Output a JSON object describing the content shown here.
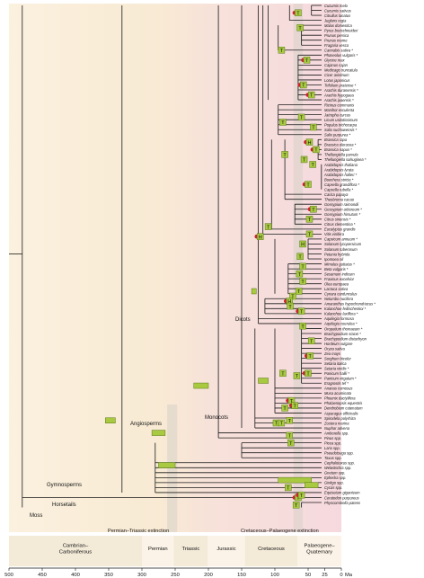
{
  "tree_labels": {
    "dicots": "Dicots",
    "monocots": "Monocots",
    "angiosperms": "Angiosperms",
    "gymnosperms": "Gymnosperms",
    "horsetails": "Horsetails",
    "moss": "Moss"
  },
  "events": {
    "pt": "Permian–Triassic extinction",
    "kpg": "Cretaceous–Palaeogene extinction"
  },
  "periods": [
    {
      "name": "Cambrian–\nCarboniferous",
      "start": 500,
      "end": 300
    },
    {
      "name": "Permian",
      "start": 300,
      "end": 252
    },
    {
      "name": "Triassic",
      "start": 252,
      "end": 201
    },
    {
      "name": "Jurassic",
      "start": 201,
      "end": 145
    },
    {
      "name": "Cretaceous",
      "start": 145,
      "end": 66
    },
    {
      "name": "Palaeogene–\nQuaternary",
      "start": 66,
      "end": 0
    }
  ],
  "axis": {
    "ticks": [
      "500",
      "450",
      "400",
      "350",
      "300",
      "250",
      "200",
      "150",
      "100",
      "50",
      "25",
      "0"
    ],
    "tick_values": [
      500,
      450,
      400,
      350,
      300,
      250,
      200,
      150,
      100,
      50,
      25,
      0
    ],
    "unit": "Ma"
  },
  "marker_letters": {
    "tetraploid": "T",
    "hexaploid": "H"
  },
  "colors": {
    "marker_fill": "#a8c940",
    "marker_stroke": "#5b7a1a",
    "dot": "#d0202e",
    "shade_band": "#d7d2c8",
    "bg_warm": "#f7e6c8",
    "bg_pink": "#f3d3db"
  },
  "species": [
    "Cucumis melo",
    "Cucumis sativus",
    "Citrullus lanatus",
    "Juglans regia",
    "Malus domestica",
    "Pyrus bretschneideri",
    "Prunus persica",
    "Prunus mume",
    "Fragaria vesca",
    "Cannabis sativa *",
    "Phaseolus vulgaris *",
    "Glycine max",
    "Cajanus cajan",
    "Medicago truncatula",
    "Cicer arietinum",
    "Lotus japonicus",
    "Trifolium pratense *",
    "Arachis duranensis *",
    "Arachis hypogaea",
    "Arachis ipaensis *",
    "Ricinus communis",
    "Manihot esculenta",
    "Jatropha curcas",
    "Linum usitatissimum",
    "Populus trichocarpa",
    "Salix suchowensis *",
    "Salix purpurea *",
    "Brassica rapa",
    "Brassica oleracea *",
    "Brassica napus *",
    "Thellungiella parvula",
    "Thellungiella salsuginea *",
    "Arabidopsis thaliana",
    "Arabidopsis lyrata",
    "Arabidopsis halleri *",
    "Boechera stricta *",
    "Capsella grandiflora *",
    "Capsella rubella *",
    "Carica papaya",
    "Theobroma cacao",
    "Gossypium raimondii",
    "Gossypium arboreum *",
    "Gossypium hirsutum *",
    "Citrus sinensis *",
    "Citrus clementina *",
    "Eucalyptus grandis",
    "Vitis vinifera",
    "Capsicum annuum *",
    "Solanum lycopersicum",
    "Solanum tuberosum",
    "Petunia hybrida",
    "Ipomoea nil",
    "Mimulus guttatus *",
    "Beta vulgaris *",
    "Sesamum indicum",
    "Fraxinus excelsior",
    "Olea europaea",
    "Lactuca sativa",
    "Cynara cardunculus",
    "Nelumbo nucifera",
    "Amaranthus hypochondriacus *",
    "Kalanchoe fedtschenkoi *",
    "Kalanchoe laxiflora *",
    "Aquilegia formosa",
    "Aquilegia coerulea *",
    "Oropetium thomaeum *",
    "Brachypodium stacei *",
    "Brachypodium distachyon",
    "Hordeum vulgare",
    "Oryza sativa",
    "Zea mays",
    "Sorghum bicolor",
    "Setaria italica",
    "Setaria viridis *",
    "Panicum hallii *",
    "Panicum virgatum *",
    "Eragrostis tef *",
    "Ananas comosus",
    "Musa acuminata",
    "Phoenix dactylifera",
    "Phalaenopsis equestris",
    "Dendrobium catenatum",
    "Asparagus officinalis",
    "Spirodela polyrhiza",
    "Zostera marina",
    "Nuphar advena",
    "Amborella spp.",
    "Pinus spp.",
    "Picea spp.",
    "Larix spp.",
    "Pseudotsuga spp.",
    "Taxus spp.",
    "Cephalotaxus spp.",
    "Welwitschia spp.",
    "Gnetum spp.",
    "Ephedra spp.",
    "Ginkgo spp.",
    "Cycas spp.",
    "Equisetum giganteum",
    "Ceratodon purpureus",
    "Physcomitrella patens"
  ],
  "markers": [
    {
      "age": 65,
      "row": 1.5,
      "letter": "T",
      "dot": true
    },
    {
      "age": 62,
      "row": 4.5,
      "letter": "T",
      "dot": false
    },
    {
      "age": 90,
      "row": 9.0,
      "letter": "T",
      "dot": false
    },
    {
      "age": 52,
      "row": 11.0,
      "letter": "T",
      "dot": true
    },
    {
      "age": 57,
      "row": 16.0,
      "letter": "T",
      "dot": true
    },
    {
      "age": 45,
      "row": 18.0,
      "letter": "T",
      "dot": true
    },
    {
      "age": 60,
      "row": 22.5,
      "letter": "T",
      "dot": false
    },
    {
      "age": 42,
      "row": 24.5,
      "letter": "T",
      "dot": false
    },
    {
      "age": 88,
      "row": 23.5,
      "letter": "T",
      "dot": false
    },
    {
      "age": 48,
      "row": 27.5,
      "letter": "H",
      "dot": true
    },
    {
      "age": 38,
      "row": 29.0,
      "letter": "T",
      "dot": true
    },
    {
      "age": 43,
      "row": 32.0,
      "letter": "T",
      "dot": false
    },
    {
      "age": 56,
      "row": 31.0,
      "letter": "T",
      "dot": false
    },
    {
      "age": 85,
      "row": 30.0,
      "letter": "T",
      "dot": false
    },
    {
      "age": 50,
      "row": 36.0,
      "letter": "T",
      "dot": true
    },
    {
      "age": 42,
      "row": 41.0,
      "letter": "T",
      "dot": true
    },
    {
      "age": 48,
      "row": 43.0,
      "letter": "T",
      "dot": false
    },
    {
      "age": 110,
      "row": 44.5,
      "letter": "T",
      "dot": false
    },
    {
      "age": 48,
      "row": 46.0,
      "letter": "T",
      "dot": false
    },
    {
      "age": 122,
      "row": 46.5,
      "letter": "H",
      "dot": true
    },
    {
      "age": 58,
      "row": 48.0,
      "letter": "H",
      "dot": false
    },
    {
      "age": 62,
      "row": 50.5,
      "letter": "T",
      "dot": false
    },
    {
      "age": 58,
      "row": 52.5,
      "letter": "T",
      "dot": false
    },
    {
      "age": 63,
      "row": 54.0,
      "letter": "T",
      "dot": false
    },
    {
      "age": 58,
      "row": 55.5,
      "letter": "T",
      "dot": false
    },
    {
      "age": 64,
      "row": 57.5,
      "letter": "T",
      "dot": false
    },
    {
      "age": 73,
      "row": 58.5,
      "letter": "T",
      "dot": false
    },
    {
      "age": 78,
      "row": 59.5,
      "letter": "H",
      "dot": true
    },
    {
      "age": 77,
      "row": 60.5,
      "letter": "T",
      "dot": false
    },
    {
      "age": 60,
      "row": 61.5,
      "letter": "T",
      "dot": true
    },
    {
      "age": 58,
      "row": 64.5,
      "letter": "T",
      "dot": false
    },
    {
      "age": 45,
      "row": 67.5,
      "letter": "T",
      "dot": false
    },
    {
      "age": 47,
      "row": 70.5,
      "letter": "T",
      "dot": true
    },
    {
      "age": 50,
      "row": 74.0,
      "letter": "T",
      "dot": true
    },
    {
      "age": 67,
      "row": 74.5,
      "letter": "T",
      "dot": false
    },
    {
      "age": 88,
      "row": 74.0,
      "letter": "T",
      "dot": false
    },
    {
      "age": 85,
      "row": 81.0,
      "letter": "T",
      "dot": false
    },
    {
      "age": 75,
      "row": 79.5,
      "letter": "T",
      "dot": true
    },
    {
      "age": 70,
      "row": 80.5,
      "letter": "T",
      "dot": true
    },
    {
      "age": 98,
      "row": 84.0,
      "letter": "T",
      "dot": false
    },
    {
      "age": 90,
      "row": 84.0,
      "letter": "T",
      "dot": false
    },
    {
      "age": 78,
      "row": 83.5,
      "letter": "T",
      "dot": false
    },
    {
      "age": 78,
      "row": 86.5,
      "letter": "T",
      "dot": false
    },
    {
      "age": 76,
      "row": 88.0,
      "letter": "T",
      "dot": false
    },
    {
      "age": 80,
      "row": 97.0,
      "letter": "T",
      "dot": false
    },
    {
      "age": 65,
      "row": 99.0,
      "letter": "T",
      "dot": true
    },
    {
      "age": 68,
      "row": 100.5,
      "letter": "T",
      "dot": false
    },
    {
      "age": 60,
      "row": 98.5,
      "letter": "T",
      "dot": true
    }
  ],
  "bars": [
    {
      "from": 222,
      "to": 200,
      "row": 76.5
    },
    {
      "from": 355,
      "to": 340,
      "row": 83.5
    },
    {
      "from": 285,
      "to": 265,
      "row": 86.0
    },
    {
      "from": 275,
      "to": 250,
      "row": 92.5
    },
    {
      "from": 95,
      "to": 45,
      "row": 95.5
    },
    {
      "from": 55,
      "to": 35,
      "row": 96.5
    },
    {
      "from": 135,
      "to": 128,
      "row": 57.5
    },
    {
      "from": 125,
      "to": 110,
      "row": 75.5
    }
  ]
}
